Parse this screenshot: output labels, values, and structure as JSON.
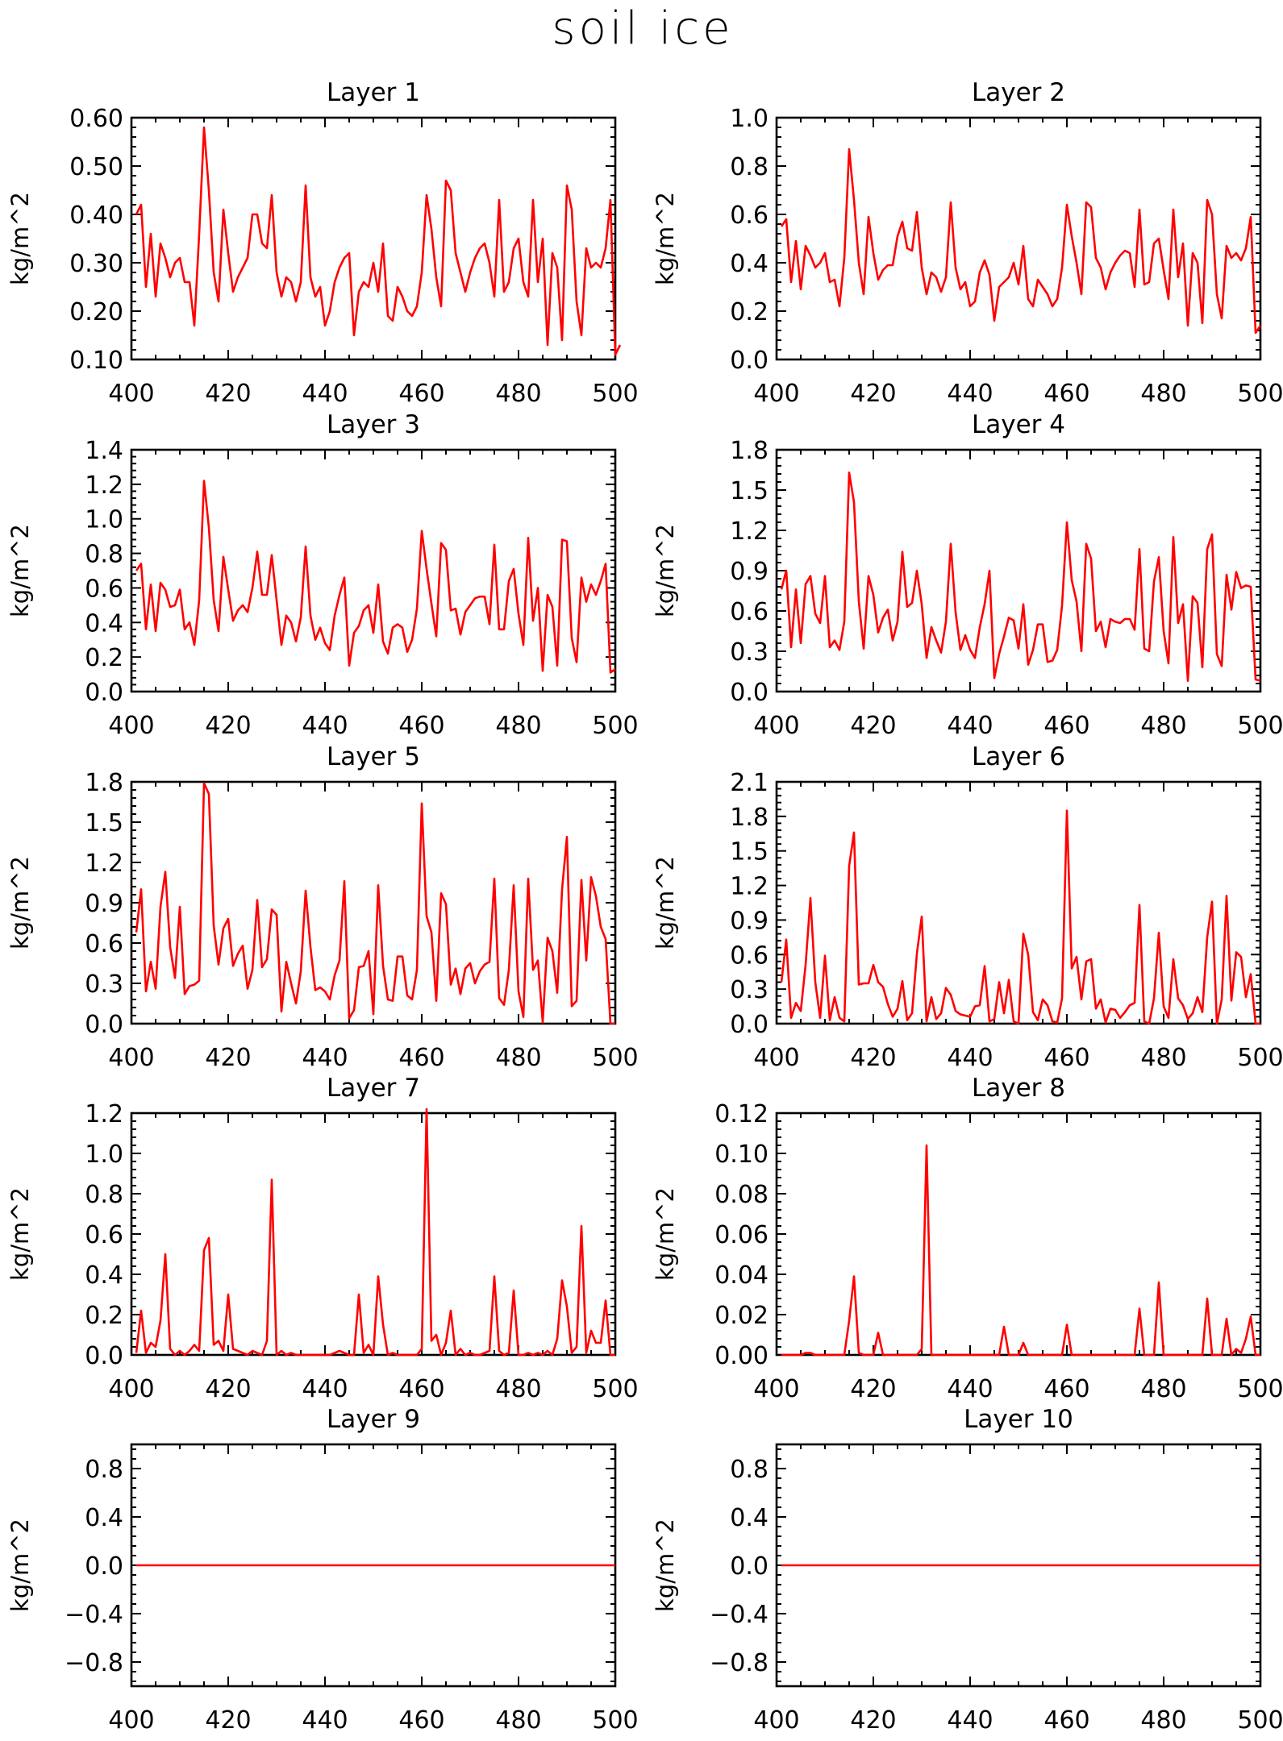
{
  "title": "soil ice",
  "chart_data": [
    {
      "type": "line",
      "title": "Layer 1",
      "ylabel": "kg/m^2",
      "xlim": [
        400,
        500
      ],
      "ylim": [
        0.1,
        0.6
      ],
      "xticks": [
        400,
        420,
        440,
        460,
        480,
        500
      ],
      "yticks": [
        0.1,
        0.2,
        0.3,
        0.4,
        0.5,
        0.6
      ],
      "ytick_labels": [
        "0.10",
        "0.20",
        "0.30",
        "0.40",
        "0.50",
        "0.60"
      ],
      "x_start": 401,
      "x_step": 1,
      "values": [
        0.4,
        0.42,
        0.25,
        0.36,
        0.23,
        0.34,
        0.31,
        0.27,
        0.3,
        0.31,
        0.26,
        0.26,
        0.17,
        0.36,
        0.58,
        0.45,
        0.28,
        0.22,
        0.41,
        0.32,
        0.24,
        0.27,
        0.29,
        0.31,
        0.4,
        0.4,
        0.34,
        0.33,
        0.44,
        0.28,
        0.23,
        0.27,
        0.26,
        0.22,
        0.26,
        0.46,
        0.27,
        0.23,
        0.25,
        0.17,
        0.2,
        0.26,
        0.29,
        0.31,
        0.32,
        0.15,
        0.24,
        0.26,
        0.25,
        0.3,
        0.24,
        0.34,
        0.19,
        0.18,
        0.25,
        0.23,
        0.2,
        0.19,
        0.21,
        0.28,
        0.44,
        0.37,
        0.27,
        0.21,
        0.47,
        0.45,
        0.32,
        0.28,
        0.24,
        0.28,
        0.31,
        0.33,
        0.34,
        0.3,
        0.23,
        0.43,
        0.24,
        0.26,
        0.33,
        0.35,
        0.26,
        0.23,
        0.43,
        0.26,
        0.35,
        0.13,
        0.32,
        0.29,
        0.14,
        0.46,
        0.41,
        0.22,
        0.15,
        0.33,
        0.29,
        0.3,
        0.29,
        0.33,
        0.43,
        0.11,
        0.13
      ]
    },
    {
      "type": "line",
      "title": "Layer 2",
      "ylabel": "kg/m^2",
      "xlim": [
        400,
        500
      ],
      "ylim": [
        0.0,
        1.0
      ],
      "xticks": [
        400,
        420,
        440,
        460,
        480,
        500
      ],
      "yticks": [
        0.0,
        0.2,
        0.4,
        0.6,
        0.8,
        1.0
      ],
      "ytick_labels": [
        "0.0",
        "0.2",
        "0.4",
        "0.6",
        "0.8",
        "1.0"
      ],
      "x_start": 401,
      "x_step": 1,
      "values": [
        0.55,
        0.58,
        0.32,
        0.49,
        0.29,
        0.47,
        0.43,
        0.38,
        0.4,
        0.44,
        0.32,
        0.33,
        0.22,
        0.42,
        0.87,
        0.66,
        0.4,
        0.27,
        0.59,
        0.44,
        0.33,
        0.37,
        0.39,
        0.39,
        0.51,
        0.57,
        0.46,
        0.45,
        0.61,
        0.38,
        0.27,
        0.36,
        0.34,
        0.28,
        0.34,
        0.65,
        0.38,
        0.29,
        0.32,
        0.22,
        0.24,
        0.36,
        0.41,
        0.35,
        0.16,
        0.3,
        0.32,
        0.34,
        0.4,
        0.31,
        0.47,
        0.25,
        0.22,
        0.33,
        0.3,
        0.27,
        0.22,
        0.25,
        0.38,
        0.64,
        0.51,
        0.4,
        0.27,
        0.65,
        0.63,
        0.42,
        0.38,
        0.29,
        0.36,
        0.4,
        0.43,
        0.45,
        0.44,
        0.3,
        0.62,
        0.31,
        0.32,
        0.48,
        0.5,
        0.37,
        0.25,
        0.62,
        0.34,
        0.48,
        0.14,
        0.44,
        0.4,
        0.15,
        0.66,
        0.6,
        0.27,
        0.17,
        0.47,
        0.42,
        0.44,
        0.41,
        0.46,
        0.59,
        0.11,
        0.14
      ]
    },
    {
      "type": "line",
      "title": "Layer 3",
      "ylabel": "kg/m^2",
      "xlim": [
        400,
        500
      ],
      "ylim": [
        0.0,
        1.4
      ],
      "xticks": [
        400,
        420,
        440,
        460,
        480,
        500
      ],
      "yticks": [
        0.0,
        0.2,
        0.4,
        0.6,
        0.8,
        1.0,
        1.2,
        1.4
      ],
      "ytick_labels": [
        "0.0",
        "0.2",
        "0.4",
        "0.6",
        "0.8",
        "1.0",
        "1.2",
        "1.4"
      ],
      "x_start": 401,
      "x_step": 1,
      "values": [
        0.7,
        0.74,
        0.36,
        0.62,
        0.35,
        0.63,
        0.59,
        0.49,
        0.5,
        0.59,
        0.36,
        0.4,
        0.27,
        0.53,
        1.22,
        0.95,
        0.53,
        0.35,
        0.78,
        0.59,
        0.41,
        0.47,
        0.5,
        0.46,
        0.6,
        0.81,
        0.56,
        0.56,
        0.79,
        0.53,
        0.27,
        0.44,
        0.4,
        0.29,
        0.43,
        0.84,
        0.44,
        0.3,
        0.37,
        0.28,
        0.24,
        0.44,
        0.56,
        0.66,
        0.15,
        0.34,
        0.38,
        0.47,
        0.5,
        0.34,
        0.62,
        0.29,
        0.22,
        0.37,
        0.39,
        0.37,
        0.23,
        0.3,
        0.48,
        0.93,
        0.71,
        0.51,
        0.32,
        0.86,
        0.82,
        0.47,
        0.48,
        0.33,
        0.46,
        0.5,
        0.54,
        0.55,
        0.55,
        0.39,
        0.85,
        0.36,
        0.36,
        0.64,
        0.71,
        0.45,
        0.27,
        0.89,
        0.41,
        0.6,
        0.12,
        0.56,
        0.49,
        0.15,
        0.88,
        0.87,
        0.31,
        0.17,
        0.66,
        0.52,
        0.62,
        0.56,
        0.64,
        0.74,
        0.11,
        0.13
      ]
    },
    {
      "type": "line",
      "title": "Layer 4",
      "ylabel": "kg/m^2",
      "xlim": [
        400,
        500
      ],
      "ylim": [
        0.0,
        1.8
      ],
      "xticks": [
        400,
        420,
        440,
        460,
        480,
        500
      ],
      "yticks": [
        0.0,
        0.3,
        0.6,
        0.9,
        1.2,
        1.5,
        1.8
      ],
      "ytick_labels": [
        "0.0",
        "0.3",
        "0.6",
        "0.9",
        "1.2",
        "1.5",
        "1.8"
      ],
      "x_start": 401,
      "x_step": 1,
      "values": [
        0.76,
        0.9,
        0.33,
        0.76,
        0.36,
        0.8,
        0.86,
        0.58,
        0.51,
        0.86,
        0.33,
        0.38,
        0.31,
        0.52,
        1.63,
        1.41,
        0.67,
        0.32,
        0.86,
        0.72,
        0.44,
        0.55,
        0.61,
        0.38,
        0.52,
        1.04,
        0.63,
        0.66,
        0.9,
        0.65,
        0.25,
        0.48,
        0.38,
        0.29,
        0.52,
        1.1,
        0.59,
        0.31,
        0.42,
        0.31,
        0.25,
        0.48,
        0.65,
        0.9,
        0.1,
        0.28,
        0.41,
        0.55,
        0.53,
        0.32,
        0.65,
        0.2,
        0.31,
        0.5,
        0.5,
        0.22,
        0.23,
        0.31,
        0.64,
        1.26,
        0.83,
        0.67,
        0.3,
        1.1,
        0.99,
        0.45,
        0.52,
        0.33,
        0.54,
        0.52,
        0.51,
        0.54,
        0.54,
        0.46,
        1.06,
        0.32,
        0.3,
        0.82,
        1.0,
        0.45,
        0.21,
        1.15,
        0.51,
        0.65,
        0.08,
        0.71,
        0.66,
        0.18,
        1.06,
        1.17,
        0.28,
        0.19,
        0.87,
        0.61,
        0.89,
        0.77,
        0.79,
        0.78,
        0.09,
        0.08
      ]
    },
    {
      "type": "line",
      "title": "Layer 5",
      "ylabel": "kg/m^2",
      "xlim": [
        400,
        500
      ],
      "ylim": [
        0.0,
        1.8
      ],
      "xticks": [
        400,
        420,
        440,
        460,
        480,
        500
      ],
      "yticks": [
        0.0,
        0.3,
        0.6,
        0.9,
        1.2,
        1.5,
        1.8
      ],
      "ytick_labels": [
        "0.0",
        "0.3",
        "0.6",
        "0.9",
        "1.2",
        "1.5",
        "1.8"
      ],
      "x_start": 401,
      "x_step": 1,
      "values": [
        0.68,
        1.0,
        0.24,
        0.46,
        0.26,
        0.87,
        1.13,
        0.57,
        0.34,
        0.87,
        0.22,
        0.28,
        0.29,
        0.32,
        1.79,
        1.71,
        0.73,
        0.44,
        0.71,
        0.78,
        0.43,
        0.52,
        0.58,
        0.26,
        0.4,
        0.92,
        0.42,
        0.48,
        0.85,
        0.81,
        0.09,
        0.46,
        0.3,
        0.15,
        0.39,
        0.99,
        0.57,
        0.25,
        0.27,
        0.24,
        0.18,
        0.36,
        0.47,
        1.06,
        0.04,
        0.1,
        0.42,
        0.43,
        0.54,
        0.07,
        1.03,
        0.43,
        0.18,
        0.17,
        0.5,
        0.5,
        0.21,
        0.18,
        0.4,
        1.64,
        0.8,
        0.68,
        0.17,
        0.97,
        0.89,
        0.29,
        0.41,
        0.22,
        0.41,
        0.45,
        0.3,
        0.39,
        0.44,
        0.46,
        1.08,
        0.19,
        0.14,
        0.4,
        1.03,
        0.24,
        0.05,
        1.08,
        0.4,
        0.47,
        0.01,
        0.64,
        0.54,
        0.23,
        1.0,
        1.39,
        0.13,
        0.17,
        1.07,
        0.47,
        1.09,
        0.95,
        0.72,
        0.63,
        0.0,
        0.0
      ]
    },
    {
      "type": "line",
      "title": "Layer 6",
      "ylabel": "kg/m^2",
      "xlim": [
        400,
        500
      ],
      "ylim": [
        0.0,
        2.1
      ],
      "xticks": [
        400,
        420,
        440,
        460,
        480,
        500
      ],
      "yticks": [
        0.0,
        0.3,
        0.6,
        0.9,
        1.2,
        1.5,
        1.8,
        2.1
      ],
      "ytick_labels": [
        "0.0",
        "0.3",
        "0.6",
        "0.9",
        "1.2",
        "1.5",
        "1.8",
        "2.1"
      ],
      "x_start": 401,
      "x_step": 1,
      "values": [
        0.36,
        0.73,
        0.05,
        0.18,
        0.11,
        0.51,
        1.09,
        0.36,
        0.05,
        0.59,
        0.03,
        0.23,
        0.05,
        0.02,
        1.37,
        1.66,
        0.34,
        0.35,
        0.35,
        0.51,
        0.36,
        0.32,
        0.17,
        0.06,
        0.13,
        0.37,
        0.03,
        0.09,
        0.61,
        0.93,
        0.02,
        0.23,
        0.04,
        0.09,
        0.31,
        0.25,
        0.11,
        0.08,
        0.07,
        0.06,
        0.15,
        0.16,
        0.5,
        0.02,
        0.04,
        0.36,
        0.09,
        0.38,
        0.02,
        0.0,
        0.78,
        0.6,
        0.1,
        0.03,
        0.21,
        0.16,
        0.02,
        0.01,
        0.22,
        1.85,
        0.48,
        0.58,
        0.21,
        0.54,
        0.56,
        0.13,
        0.21,
        0.01,
        0.13,
        0.12,
        0.05,
        0.1,
        0.16,
        0.18,
        1.03,
        0.02,
        0.0,
        0.22,
        0.79,
        0.15,
        0.05,
        0.56,
        0.22,
        0.16,
        0.04,
        0.09,
        0.23,
        0.1,
        0.75,
        1.06,
        0.0,
        0.21,
        1.11,
        0.2,
        0.62,
        0.58,
        0.23,
        0.43,
        0.0,
        0.0
      ]
    },
    {
      "type": "line",
      "title": "Layer 7",
      "ylabel": "kg/m^2",
      "xlim": [
        400,
        500
      ],
      "ylim": [
        0.0,
        1.2
      ],
      "xticks": [
        400,
        420,
        440,
        460,
        480,
        500
      ],
      "yticks": [
        0.0,
        0.2,
        0.4,
        0.6,
        0.8,
        1.0,
        1.2
      ],
      "ytick_labels": [
        "0.0",
        "0.2",
        "0.4",
        "0.6",
        "0.8",
        "1.0",
        "1.2"
      ],
      "x_start": 401,
      "x_step": 1,
      "values": [
        0.01,
        0.22,
        0.01,
        0.06,
        0.04,
        0.17,
        0.5,
        0.03,
        0.0,
        0.02,
        0.0,
        0.02,
        0.05,
        0.02,
        0.52,
        0.58,
        0.05,
        0.07,
        0.02,
        0.3,
        0.03,
        0.02,
        0.01,
        0.0,
        0.02,
        0.01,
        0.0,
        0.07,
        0.87,
        0.0,
        0.02,
        0.0,
        0.01,
        0.0,
        0.0,
        0.0,
        0.0,
        0.0,
        0.0,
        0.0,
        0.0,
        0.01,
        0.02,
        0.01,
        0.0,
        0.0,
        0.3,
        0.01,
        0.05,
        0.0,
        0.39,
        0.15,
        0.0,
        0.01,
        0.0,
        0.0,
        0.0,
        0.0,
        0.0,
        0.03,
        1.22,
        0.07,
        0.1,
        0.0,
        0.06,
        0.22,
        0.0,
        0.03,
        0.0,
        0.01,
        0.0,
        0.0,
        0.01,
        0.02,
        0.39,
        0.02,
        0.0,
        0.01,
        0.32,
        0.0,
        0.0,
        0.01,
        0.0,
        0.01,
        0.0,
        0.02,
        0.0,
        0.08,
        0.37,
        0.24,
        0.01,
        0.04,
        0.64,
        0.01,
        0.12,
        0.06,
        0.06,
        0.27,
        0.0,
        0.0
      ]
    },
    {
      "type": "line",
      "title": "Layer 8",
      "ylabel": "kg/m^2",
      "xlim": [
        400,
        500
      ],
      "ylim": [
        0.0,
        0.12
      ],
      "xticks": [
        400,
        420,
        440,
        460,
        480,
        500
      ],
      "yticks": [
        0.0,
        0.02,
        0.04,
        0.06,
        0.08,
        0.1,
        0.12
      ],
      "ytick_labels": [
        "0.00",
        "0.02",
        "0.04",
        "0.06",
        "0.08",
        "0.10",
        "0.12"
      ],
      "x_start": 401,
      "x_step": 1,
      "values": [
        0,
        0,
        0,
        0,
        0,
        0.001,
        0.001,
        0,
        0,
        0,
        0,
        0,
        0,
        0,
        0.017,
        0.039,
        0.001,
        0,
        0,
        0,
        0.011,
        0,
        0,
        0,
        0,
        0,
        0,
        0,
        0,
        0.003,
        0.104,
        0,
        0,
        0,
        0,
        0,
        0,
        0,
        0,
        0,
        0,
        0,
        0,
        0,
        0,
        0,
        0.014,
        0,
        0,
        0,
        0.006,
        0,
        0,
        0,
        0,
        0,
        0,
        0,
        0,
        0.015,
        0,
        0,
        0,
        0,
        0,
        0,
        0,
        0,
        0,
        0,
        0,
        0,
        0,
        0,
        0.023,
        0,
        0,
        0,
        0.036,
        0,
        0,
        0,
        0,
        0,
        0,
        0,
        0,
        0,
        0.028,
        0,
        0,
        0,
        0.018,
        0,
        0.003,
        0.001,
        0.008,
        0.019,
        0,
        0
      ]
    },
    {
      "type": "line",
      "title": "Layer 9",
      "ylabel": "kg/m^2",
      "xlim": [
        400,
        500
      ],
      "ylim": [
        -1.0,
        1.0
      ],
      "xticks": [
        400,
        420,
        440,
        460,
        480,
        500
      ],
      "yticks": [
        -0.8,
        -0.4,
        0.0,
        0.4,
        0.8
      ],
      "ytick_labels": [
        "−0.8",
        "−0.4",
        "0.0",
        "0.4",
        "0.8"
      ],
      "x": [
        401,
        500
      ],
      "values": [
        0.0,
        0.0
      ]
    },
    {
      "type": "line",
      "title": "Layer 10",
      "ylabel": "kg/m^2",
      "xlim": [
        400,
        500
      ],
      "ylim": [
        -1.0,
        1.0
      ],
      "xticks": [
        400,
        420,
        440,
        460,
        480,
        500
      ],
      "yticks": [
        -0.8,
        -0.4,
        0.0,
        0.4,
        0.8
      ],
      "ytick_labels": [
        "−0.8",
        "−0.4",
        "0.0",
        "0.4",
        "0.8"
      ],
      "x": [
        401,
        500
      ],
      "values": [
        0.0,
        0.0
      ]
    }
  ]
}
